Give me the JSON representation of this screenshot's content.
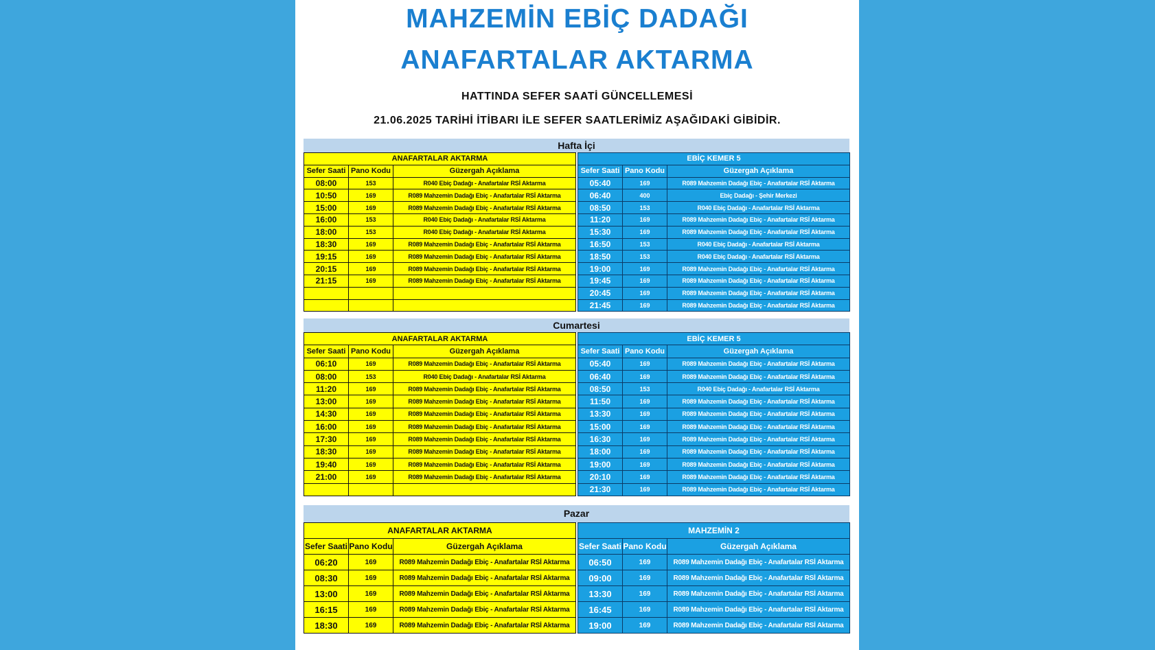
{
  "title_line1": "MAHZEMİN EBİÇ DADAĞI",
  "title_line2": "ANAFARTALAR AKTARMA",
  "subtitle1": "HATTINDA SEFER SAATİ GÜNCELLEMESİ",
  "subtitle2": "21.06.2025 TARİHİ İTİBARI İLE SEFER SAATLERİMİZ AŞAĞIDAKİ GİBİDİR.",
  "columns": [
    "Sefer Saati",
    "Pano Kodu",
    "Güzergah Açıklama"
  ],
  "colors": {
    "background": "#3ea6dd",
    "title": "#1a7fd0",
    "left_table": "#ffff00",
    "right_table": "#1ba0e2",
    "section_bar": "#bcd5ec"
  },
  "sections": [
    {
      "label": "Hafta İçi",
      "left": {
        "title": "ANAFARTALAR AKTARMA",
        "rows": [
          [
            "08:00",
            "153",
            "R040 Ebiç Dadağı - Anafartalar RSİ Aktarma"
          ],
          [
            "10:50",
            "169",
            "R089 Mahzemin Dadağı Ebiç - Anafartalar RSİ Aktarma"
          ],
          [
            "15:00",
            "169",
            "R089 Mahzemin Dadağı Ebiç - Anafartalar RSİ Aktarma"
          ],
          [
            "16:00",
            "153",
            "R040 Ebiç Dadağı - Anafartalar RSİ Aktarma"
          ],
          [
            "18:00",
            "153",
            "R040 Ebiç Dadağı - Anafartalar RSİ Aktarma"
          ],
          [
            "18:30",
            "169",
            "R089 Mahzemin Dadağı Ebiç - Anafartalar RSİ Aktarma"
          ],
          [
            "19:15",
            "169",
            "R089 Mahzemin Dadağı Ebiç - Anafartalar RSİ Aktarma"
          ],
          [
            "20:15",
            "169",
            "R089 Mahzemin Dadağı Ebiç - Anafartalar RSİ Aktarma"
          ],
          [
            "21:15",
            "169",
            "R089 Mahzemin Dadağı Ebiç - Anafartalar RSİ Aktarma"
          ],
          [
            "",
            "",
            ""
          ],
          [
            "",
            "",
            ""
          ]
        ]
      },
      "right": {
        "title": "EBİÇ KEMER 5",
        "rows": [
          [
            "05:40",
            "169",
            "R089 Mahzemin Dadağı Ebiç - Anafartalar RSİ Aktarma"
          ],
          [
            "06:40",
            "400",
            "Ebiç Dadağı - Şehir Merkezi"
          ],
          [
            "08:50",
            "153",
            "R040 Ebiç Dadağı - Anafartalar RSİ Aktarma"
          ],
          [
            "11:20",
            "169",
            "R089 Mahzemin Dadağı Ebiç - Anafartalar RSİ Aktarma"
          ],
          [
            "15:30",
            "169",
            "R089 Mahzemin Dadağı Ebiç - Anafartalar RSİ Aktarma"
          ],
          [
            "16:50",
            "153",
            "R040 Ebiç Dadağı - Anafartalar RSİ Aktarma"
          ],
          [
            "18:50",
            "153",
            "R040 Ebiç Dadağı - Anafartalar RSİ Aktarma"
          ],
          [
            "19:00",
            "169",
            "R089 Mahzemin Dadağı Ebiç - Anafartalar RSİ Aktarma"
          ],
          [
            "19:45",
            "169",
            "R089 Mahzemin Dadağı Ebiç - Anafartalar RSİ Aktarma"
          ],
          [
            "20:45",
            "169",
            "R089 Mahzemin Dadağı Ebiç - Anafartalar RSİ Aktarma"
          ],
          [
            "21:45",
            "169",
            "R089 Mahzemin Dadağı Ebiç - Anafartalar RSİ Aktarma"
          ]
        ]
      }
    },
    {
      "label": "Cumartesi",
      "left": {
        "title": "ANAFARTALAR AKTARMA",
        "rows": [
          [
            "06:10",
            "169",
            "R089 Mahzemin Dadağı Ebiç - Anafartalar RSİ Aktarma"
          ],
          [
            "08:00",
            "153",
            "R040 Ebiç Dadağı - Anafartalar RSİ Aktarma"
          ],
          [
            "11:20",
            "169",
            "R089 Mahzemin Dadağı Ebiç - Anafartalar RSİ Aktarma"
          ],
          [
            "13:00",
            "169",
            "R089 Mahzemin Dadağı Ebiç - Anafartalar RSİ Aktarma"
          ],
          [
            "14:30",
            "169",
            "R089 Mahzemin Dadağı Ebiç - Anafartalar RSİ Aktarma"
          ],
          [
            "16:00",
            "169",
            "R089 Mahzemin Dadağı Ebiç - Anafartalar RSİ Aktarma"
          ],
          [
            "17:30",
            "169",
            "R089 Mahzemin Dadağı Ebiç - Anafartalar RSİ Aktarma"
          ],
          [
            "18:30",
            "169",
            "R089 Mahzemin Dadağı Ebiç - Anafartalar RSİ Aktarma"
          ],
          [
            "19:40",
            "169",
            "R089 Mahzemin Dadağı Ebiç - Anafartalar RSİ Aktarma"
          ],
          [
            "21:00",
            "169",
            "R089 Mahzemin Dadağı Ebiç - Anafartalar RSİ Aktarma"
          ],
          [
            "",
            "",
            ""
          ]
        ]
      },
      "right": {
        "title": "EBİÇ KEMER 5",
        "rows": [
          [
            "05:40",
            "169",
            "R089 Mahzemin Dadağı Ebiç - Anafartalar RSİ Aktarma"
          ],
          [
            "06:40",
            "169",
            "R089 Mahzemin Dadağı Ebiç - Anafartalar RSİ Aktarma"
          ],
          [
            "08:50",
            "153",
            "R040 Ebiç Dadağı - Anafartalar RSİ Aktarma"
          ],
          [
            "11:50",
            "169",
            "R089 Mahzemin Dadağı Ebiç - Anafartalar RSİ Aktarma"
          ],
          [
            "13:30",
            "169",
            "R089 Mahzemin Dadağı Ebiç - Anafartalar RSİ Aktarma"
          ],
          [
            "15:00",
            "169",
            "R089 Mahzemin Dadağı Ebiç - Anafartalar RSİ Aktarma"
          ],
          [
            "16:30",
            "169",
            "R089 Mahzemin Dadağı Ebiç - Anafartalar RSİ Aktarma"
          ],
          [
            "18:00",
            "169",
            "R089 Mahzemin Dadağı Ebiç - Anafartalar RSİ Aktarma"
          ],
          [
            "19:00",
            "169",
            "R089 Mahzemin Dadağı Ebiç - Anafartalar RSİ Aktarma"
          ],
          [
            "20:10",
            "169",
            "R089 Mahzemin Dadağı Ebiç - Anafartalar RSİ Aktarma"
          ],
          [
            "21:30",
            "169",
            "R089 Mahzemin Dadağı Ebiç - Anafartalar RSİ Aktarma"
          ]
        ]
      }
    },
    {
      "label": "Pazar",
      "left": {
        "title": "ANAFARTALAR AKTARMA",
        "rows": [
          [
            "06:20",
            "169",
            "R089 Mahzemin Dadağı Ebiç - Anafartalar RSİ Aktarma"
          ],
          [
            "08:30",
            "169",
            "R089 Mahzemin Dadağı Ebiç - Anafartalar RSİ Aktarma"
          ],
          [
            "13:00",
            "169",
            "R089 Mahzemin Dadağı Ebiç - Anafartalar RSİ Aktarma"
          ],
          [
            "16:15",
            "169",
            "R089 Mahzemin Dadağı Ebiç - Anafartalar RSİ Aktarma"
          ],
          [
            "18:30",
            "169",
            "R089 Mahzemin Dadağı Ebiç - Anafartalar RSİ Aktarma"
          ]
        ]
      },
      "right": {
        "title": "MAHZEMİN 2",
        "rows": [
          [
            "06:50",
            "169",
            "R089 Mahzemin Dadağı Ebiç - Anafartalar RSİ Aktarma"
          ],
          [
            "09:00",
            "169",
            "R089 Mahzemin Dadağı Ebiç - Anafartalar RSİ Aktarma"
          ],
          [
            "13:30",
            "169",
            "R089 Mahzemin Dadağı Ebiç - Anafartalar RSİ Aktarma"
          ],
          [
            "16:45",
            "169",
            "R089 Mahzemin Dadağı Ebiç - Anafartalar RSİ Aktarma"
          ],
          [
            "19:00",
            "169",
            "R089 Mahzemin Dadağı Ebiç - Anafartalar RSİ Aktarma"
          ]
        ]
      }
    }
  ]
}
